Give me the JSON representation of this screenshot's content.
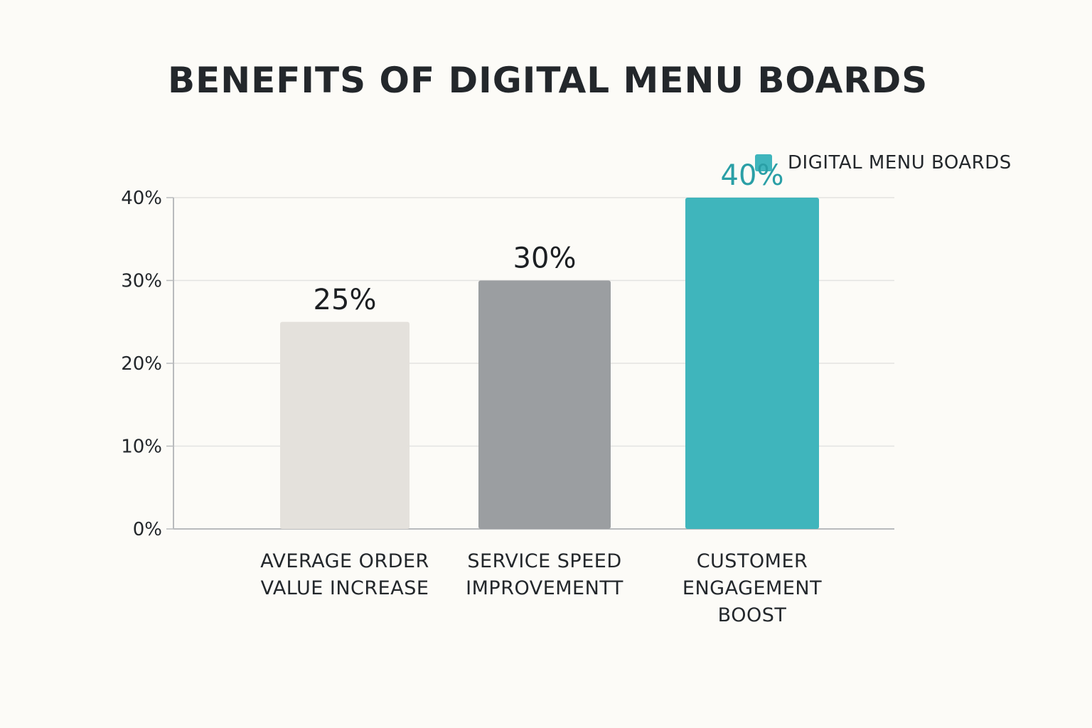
{
  "chart_data": {
    "type": "bar",
    "title": "BENEFITS OF DIGITAL MENU BOARDS",
    "legend": {
      "position": "top-right",
      "entries": [
        {
          "label": "DIGITAL MENU BOARDS",
          "color": "#3fb5bc"
        }
      ]
    },
    "categories": [
      [
        "AVERAGE ORDER",
        "VALUE INCREASE"
      ],
      [
        "SERVICE SPEED",
        "IMPROVEMENTT"
      ],
      [
        "CUSTOMER",
        "ENGAGEMENT",
        "BOOST"
      ]
    ],
    "values": [
      25,
      30,
      40
    ],
    "value_labels": [
      "25%",
      "30%",
      "40%"
    ],
    "bar_colors": [
      "#e4e1dc",
      "#9b9ea1",
      "#3fb5bc"
    ],
    "value_label_colors": [
      "#1c1f22",
      "#1c1f22",
      "#2a9fa6"
    ],
    "ylim": [
      0,
      40
    ],
    "y_ticks": [
      {
        "value": 0,
        "label": "0%"
      },
      {
        "value": 10,
        "label": "10%"
      },
      {
        "value": 20,
        "label": "20%"
      },
      {
        "value": 30,
        "label": "30%"
      },
      {
        "value": 40,
        "label": "40%"
      }
    ],
    "grid": true,
    "xlabel": "",
    "ylabel": ""
  }
}
